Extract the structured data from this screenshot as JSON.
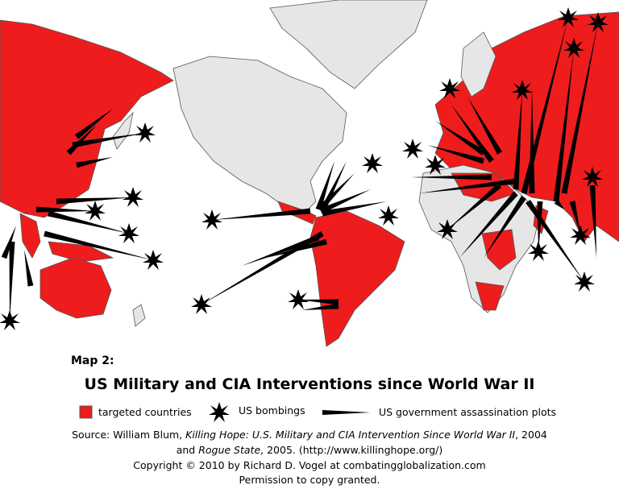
{
  "map": {
    "label": "Map 2:",
    "title": "US Military and CIA Interventions since World War II",
    "legend": [
      "targeted countries",
      "US bombings",
      "US government assassination plots"
    ],
    "source": {
      "line1": [
        "Source:  William Blum, ",
        "Killing Hope: U.S. Military and CIA Intervention Since World War II",
        ", 2004"
      ],
      "line2": [
        "and ",
        "Rogue State",
        ", 2005. (http://www.killinghope.org/)"
      ]
    },
    "copyright": "Copyright  ©  2010 by Richard D. Vogel at combatingglobalization.com",
    "permission": "Permission to copy granted."
  }
}
